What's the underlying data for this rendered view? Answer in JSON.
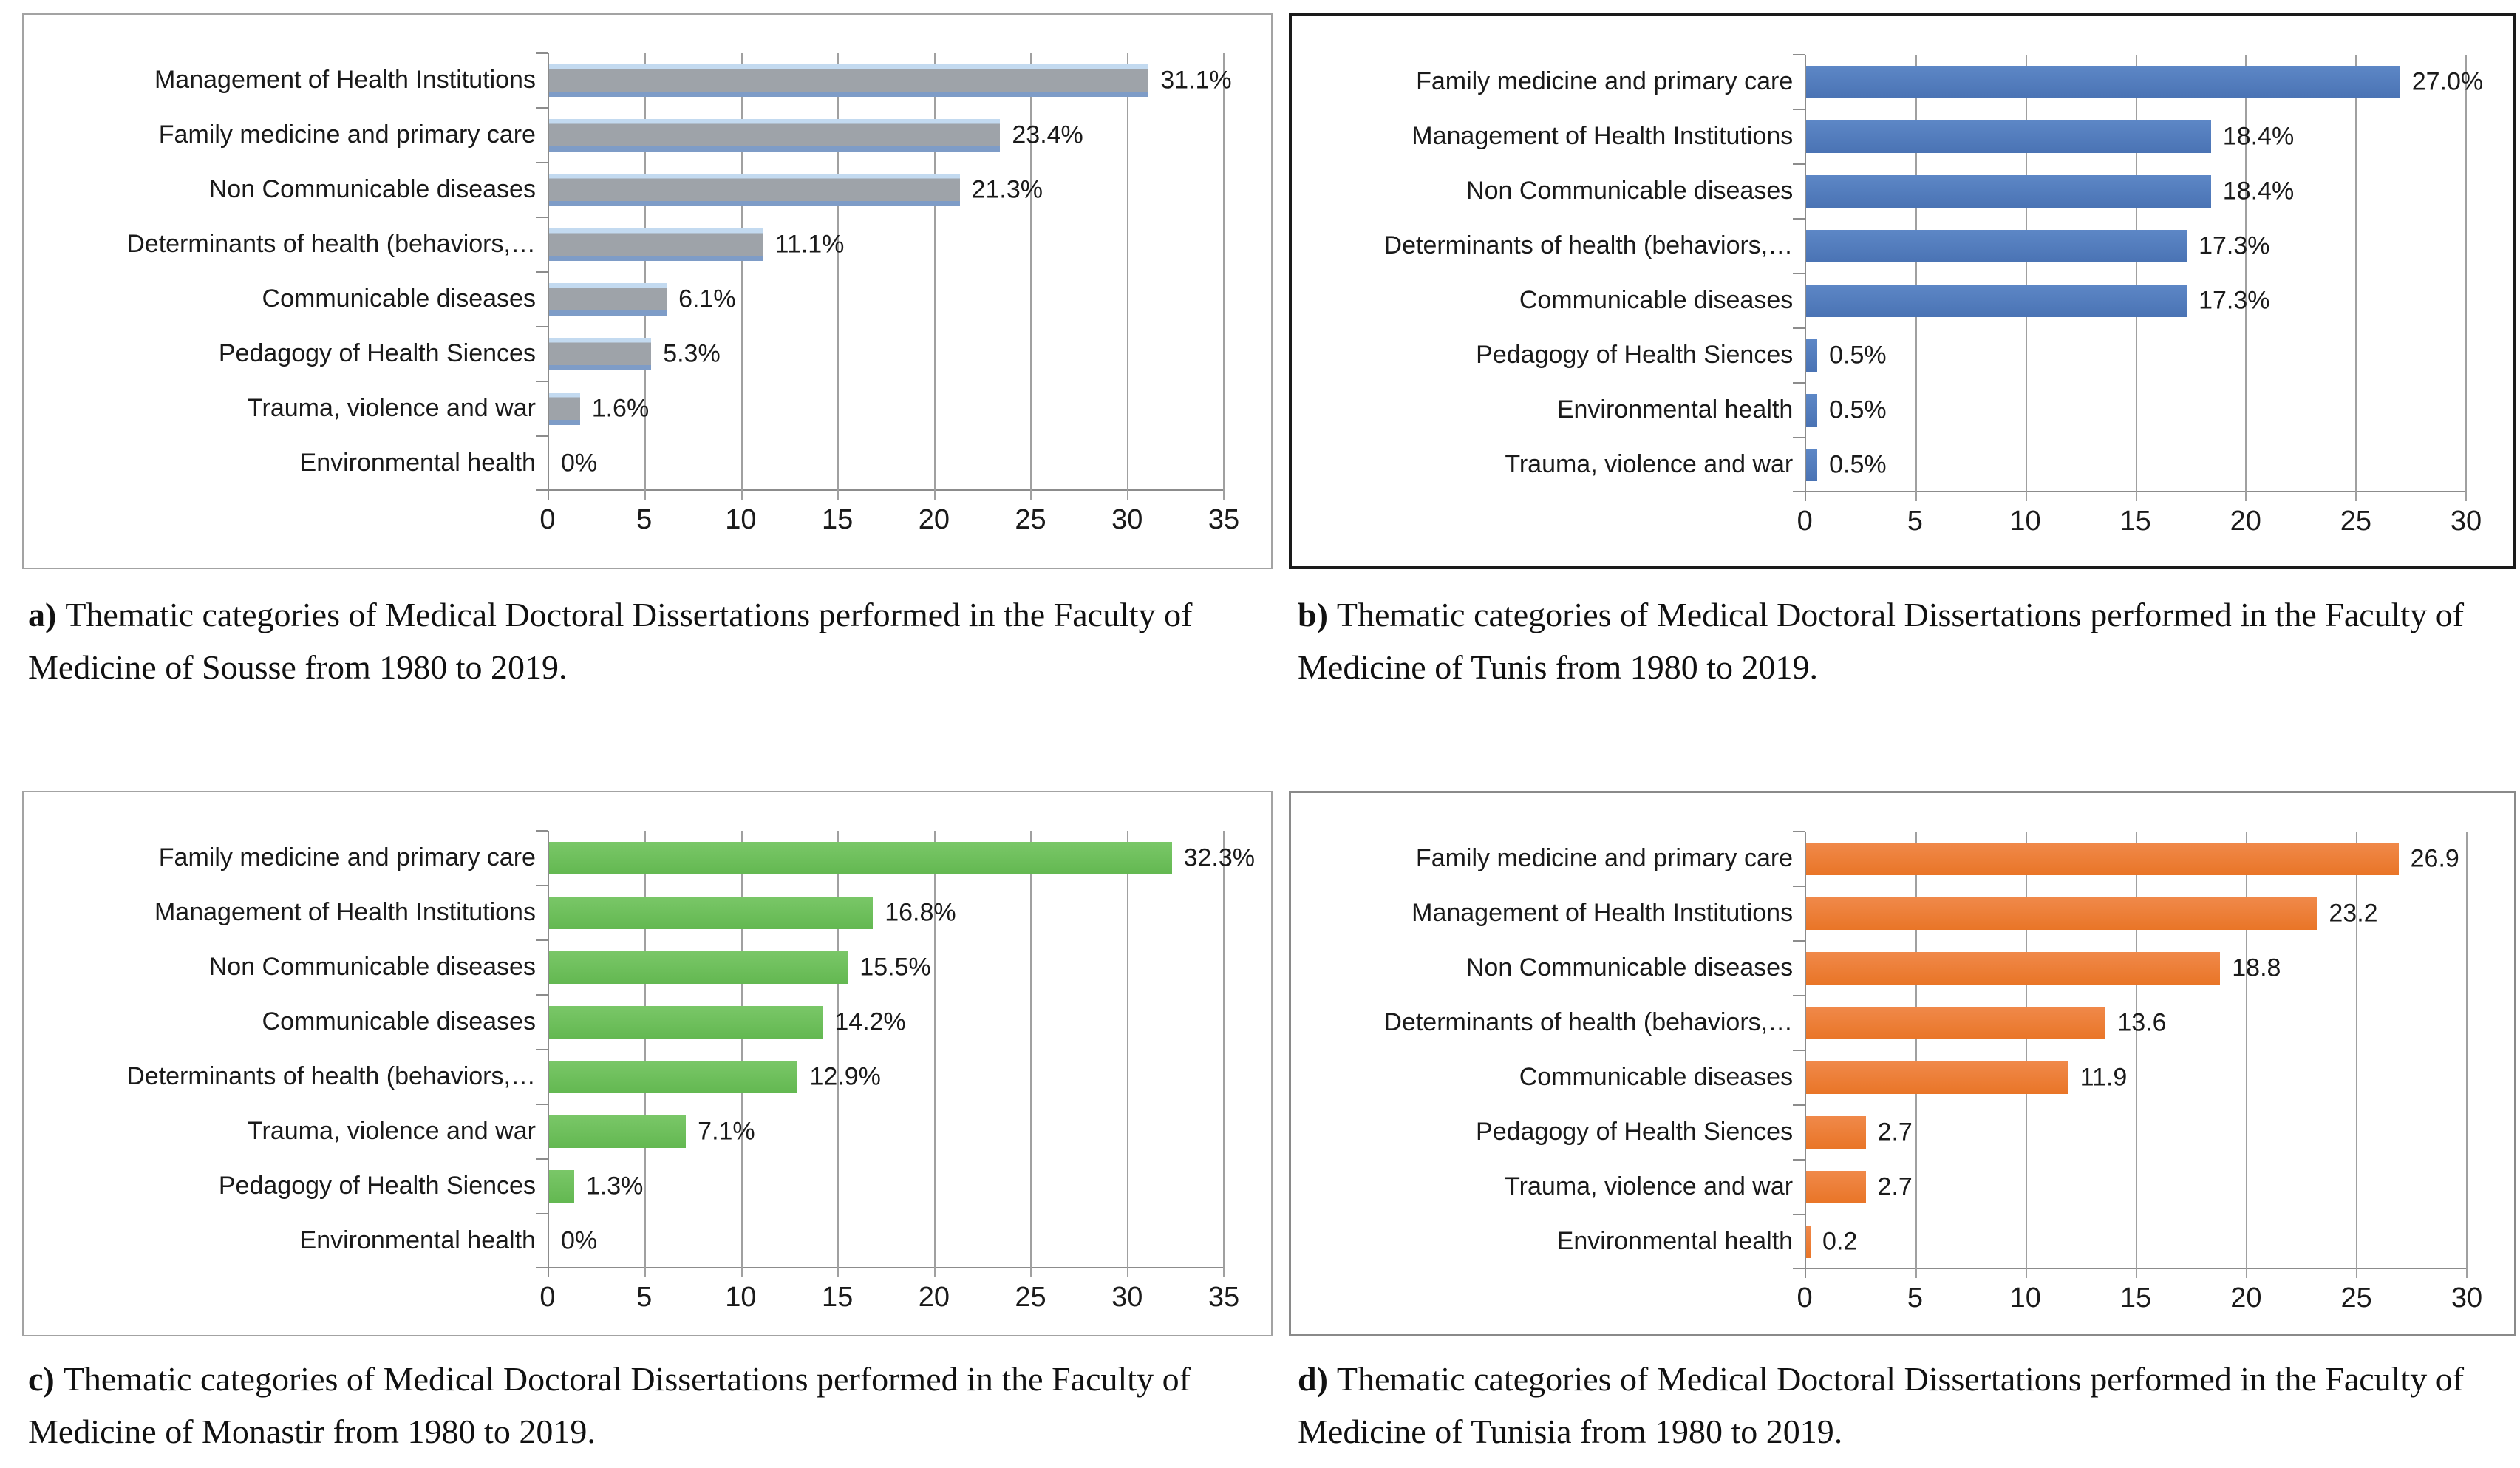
{
  "page": {
    "background": "#ffffff"
  },
  "chart_data": [
    {
      "id": "a",
      "type": "bar",
      "orientation": "horizontal",
      "categories": [
        "Management of Health Institutions",
        "Family medicine and primary care",
        "Non Communicable diseases",
        "Determinants of health (behaviors,…",
        "Communicable diseases",
        "Pedagogy of Health Siences",
        "Trauma, violence and war",
        "Environmental health"
      ],
      "values": [
        31.1,
        23.4,
        21.3,
        11.1,
        6.1,
        5.3,
        1.6,
        0
      ],
      "value_labels": [
        "31.1%",
        "23.4%",
        "21.3%",
        "11.1%",
        "6.1%",
        "5.3%",
        "1.6%",
        "0%"
      ],
      "xlim": [
        0,
        35
      ],
      "xticks": [
        "0",
        "5",
        "10",
        "15",
        "20",
        "25",
        "30",
        "35"
      ],
      "grid": true,
      "legend_position": "none",
      "bar_gradient": [
        "#c3daf0",
        "#9ea3a9",
        "#7e9cc7"
      ],
      "panel_border_color": "#a3a3a3",
      "panel_border_width": "2px",
      "caption_prefix": "a)",
      "caption": "Thematic categories of Medical Doctoral Dissertations performed in the Faculty of Medicine of Sousse from 1980 to 2019."
    },
    {
      "id": "b",
      "type": "bar",
      "orientation": "horizontal",
      "categories": [
        "Family medicine and primary care",
        "Management of Health Institutions",
        "Non Communicable diseases",
        "Determinants of health (behaviors,…",
        "Communicable diseases",
        "Pedagogy of Health Siences",
        "Environmental health",
        "Trauma, violence and war"
      ],
      "values": [
        27.0,
        18.4,
        18.4,
        17.3,
        17.3,
        0.5,
        0.5,
        0.5
      ],
      "value_labels": [
        "27.0%",
        "18.4%",
        "18.4%",
        "17.3%",
        "17.3%",
        "0.5%",
        "0.5%",
        "0.5%"
      ],
      "xlim": [
        0,
        30
      ],
      "xticks": [
        "0",
        "5",
        "10",
        "15",
        "20",
        "25",
        "30"
      ],
      "grid": true,
      "legend_position": "none",
      "bar_gradient": [
        "#5d87c6",
        "#4a73b4"
      ],
      "panel_border_color": "#1a1a1a",
      "panel_border_width": "4px",
      "caption_prefix": "b)",
      "caption": "Thematic categories of Medical Doctoral Dissertations performed in the Faculty of Medicine of Tunis from 1980 to 2019."
    },
    {
      "id": "c",
      "type": "bar",
      "orientation": "horizontal",
      "categories": [
        "Family medicine and primary care",
        "Management of Health Institutions",
        "Non Communicable diseases",
        "Communicable diseases",
        "Determinants of health (behaviors,…",
        "Trauma, violence and war",
        "Pedagogy of Health Siences",
        "Environmental health"
      ],
      "values": [
        32.3,
        16.8,
        15.5,
        14.2,
        12.9,
        7.1,
        1.3,
        0
      ],
      "value_labels": [
        "32.3%",
        "16.8%",
        "15.5%",
        "14.2%",
        "12.9%",
        "7.1%",
        "1.3%",
        "0%"
      ],
      "xlim": [
        0,
        35
      ],
      "xticks": [
        "0",
        "5",
        "10",
        "15",
        "20",
        "25",
        "30",
        "35"
      ],
      "grid": true,
      "legend_position": "none",
      "bar_gradient": [
        "#7ac768",
        "#63b851"
      ],
      "panel_border_color": "#a3a3a3",
      "panel_border_width": "2px",
      "caption_prefix": "c)",
      "caption": "Thematic categories of Medical Doctoral Dissertations performed in the Faculty of Medicine of Monastir from 1980 to 2019."
    },
    {
      "id": "d",
      "type": "bar",
      "orientation": "horizontal",
      "categories": [
        "Family medicine and primary care",
        "Management of Health Institutions",
        "Non Communicable diseases",
        "Determinants of health (behaviors,…",
        "Communicable diseases",
        "Pedagogy of Health Siences",
        "Trauma, violence and war",
        "Environmental health"
      ],
      "values": [
        26.9,
        23.2,
        18.8,
        13.6,
        11.9,
        2.7,
        2.7,
        0.2
      ],
      "value_labels": [
        "26.9",
        "23.2",
        "18.8",
        "13.6",
        "11.9",
        "2.7",
        "2.7",
        "0.2"
      ],
      "xlim": [
        0,
        30
      ],
      "xticks": [
        "0",
        "5",
        "10",
        "15",
        "20",
        "25",
        "30"
      ],
      "grid": true,
      "legend_position": "none",
      "bar_gradient": [
        "#f0894a",
        "#e97527"
      ],
      "panel_border_color": "#8a8a8a",
      "panel_border_width": "3px",
      "caption_prefix": "d)",
      "caption": "Thematic categories of Medical Doctoral Dissertations performed in the Faculty of Medicine of Tunisia from 1980 to 2019."
    }
  ]
}
